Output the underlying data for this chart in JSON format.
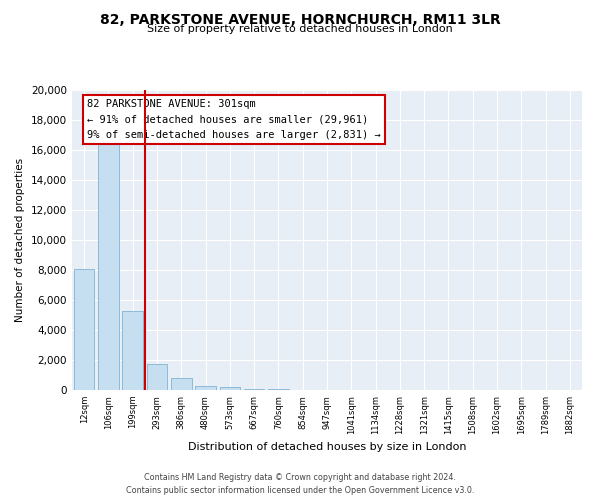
{
  "title_line1": "82, PARKSTONE AVENUE, HORNCHURCH, RM11 3LR",
  "title_line2": "Size of property relative to detached houses in London",
  "xlabel": "Distribution of detached houses by size in London",
  "ylabel": "Number of detached properties",
  "footer_line1": "Contains HM Land Registry data © Crown copyright and database right 2024.",
  "footer_line2": "Contains public sector information licensed under the Open Government Licence v3.0.",
  "bar_color": "#c6dff0",
  "bar_edge_color": "#7fb3d3",
  "vline_color": "#cc0000",
  "vline_x_idx": 3,
  "annotation_title": "82 PARKSTONE AVENUE: 301sqm",
  "annotation_line2": "← 91% of detached houses are smaller (29,961)",
  "annotation_line3": "9% of semi-detached houses are larger (2,831) →",
  "annotation_box_color": "#ffffff",
  "annotation_box_edge": "#cc0000",
  "categories": [
    "12sqm",
    "106sqm",
    "199sqm",
    "293sqm",
    "386sqm",
    "480sqm",
    "573sqm",
    "667sqm",
    "760sqm",
    "854sqm",
    "947sqm",
    "1041sqm",
    "1134sqm",
    "1228sqm",
    "1321sqm",
    "1415sqm",
    "1508sqm",
    "1602sqm",
    "1695sqm",
    "1789sqm",
    "1882sqm"
  ],
  "values": [
    8100,
    16500,
    5300,
    1750,
    800,
    300,
    200,
    100,
    50,
    0,
    0,
    0,
    0,
    0,
    0,
    0,
    0,
    0,
    0,
    0,
    0
  ],
  "ylim": [
    0,
    20000
  ],
  "yticks": [
    0,
    2000,
    4000,
    6000,
    8000,
    10000,
    12000,
    14000,
    16000,
    18000,
    20000
  ],
  "background_color": "#ffffff",
  "plot_bg_color": "#e8eef5",
  "grid_color": "#ffffff"
}
